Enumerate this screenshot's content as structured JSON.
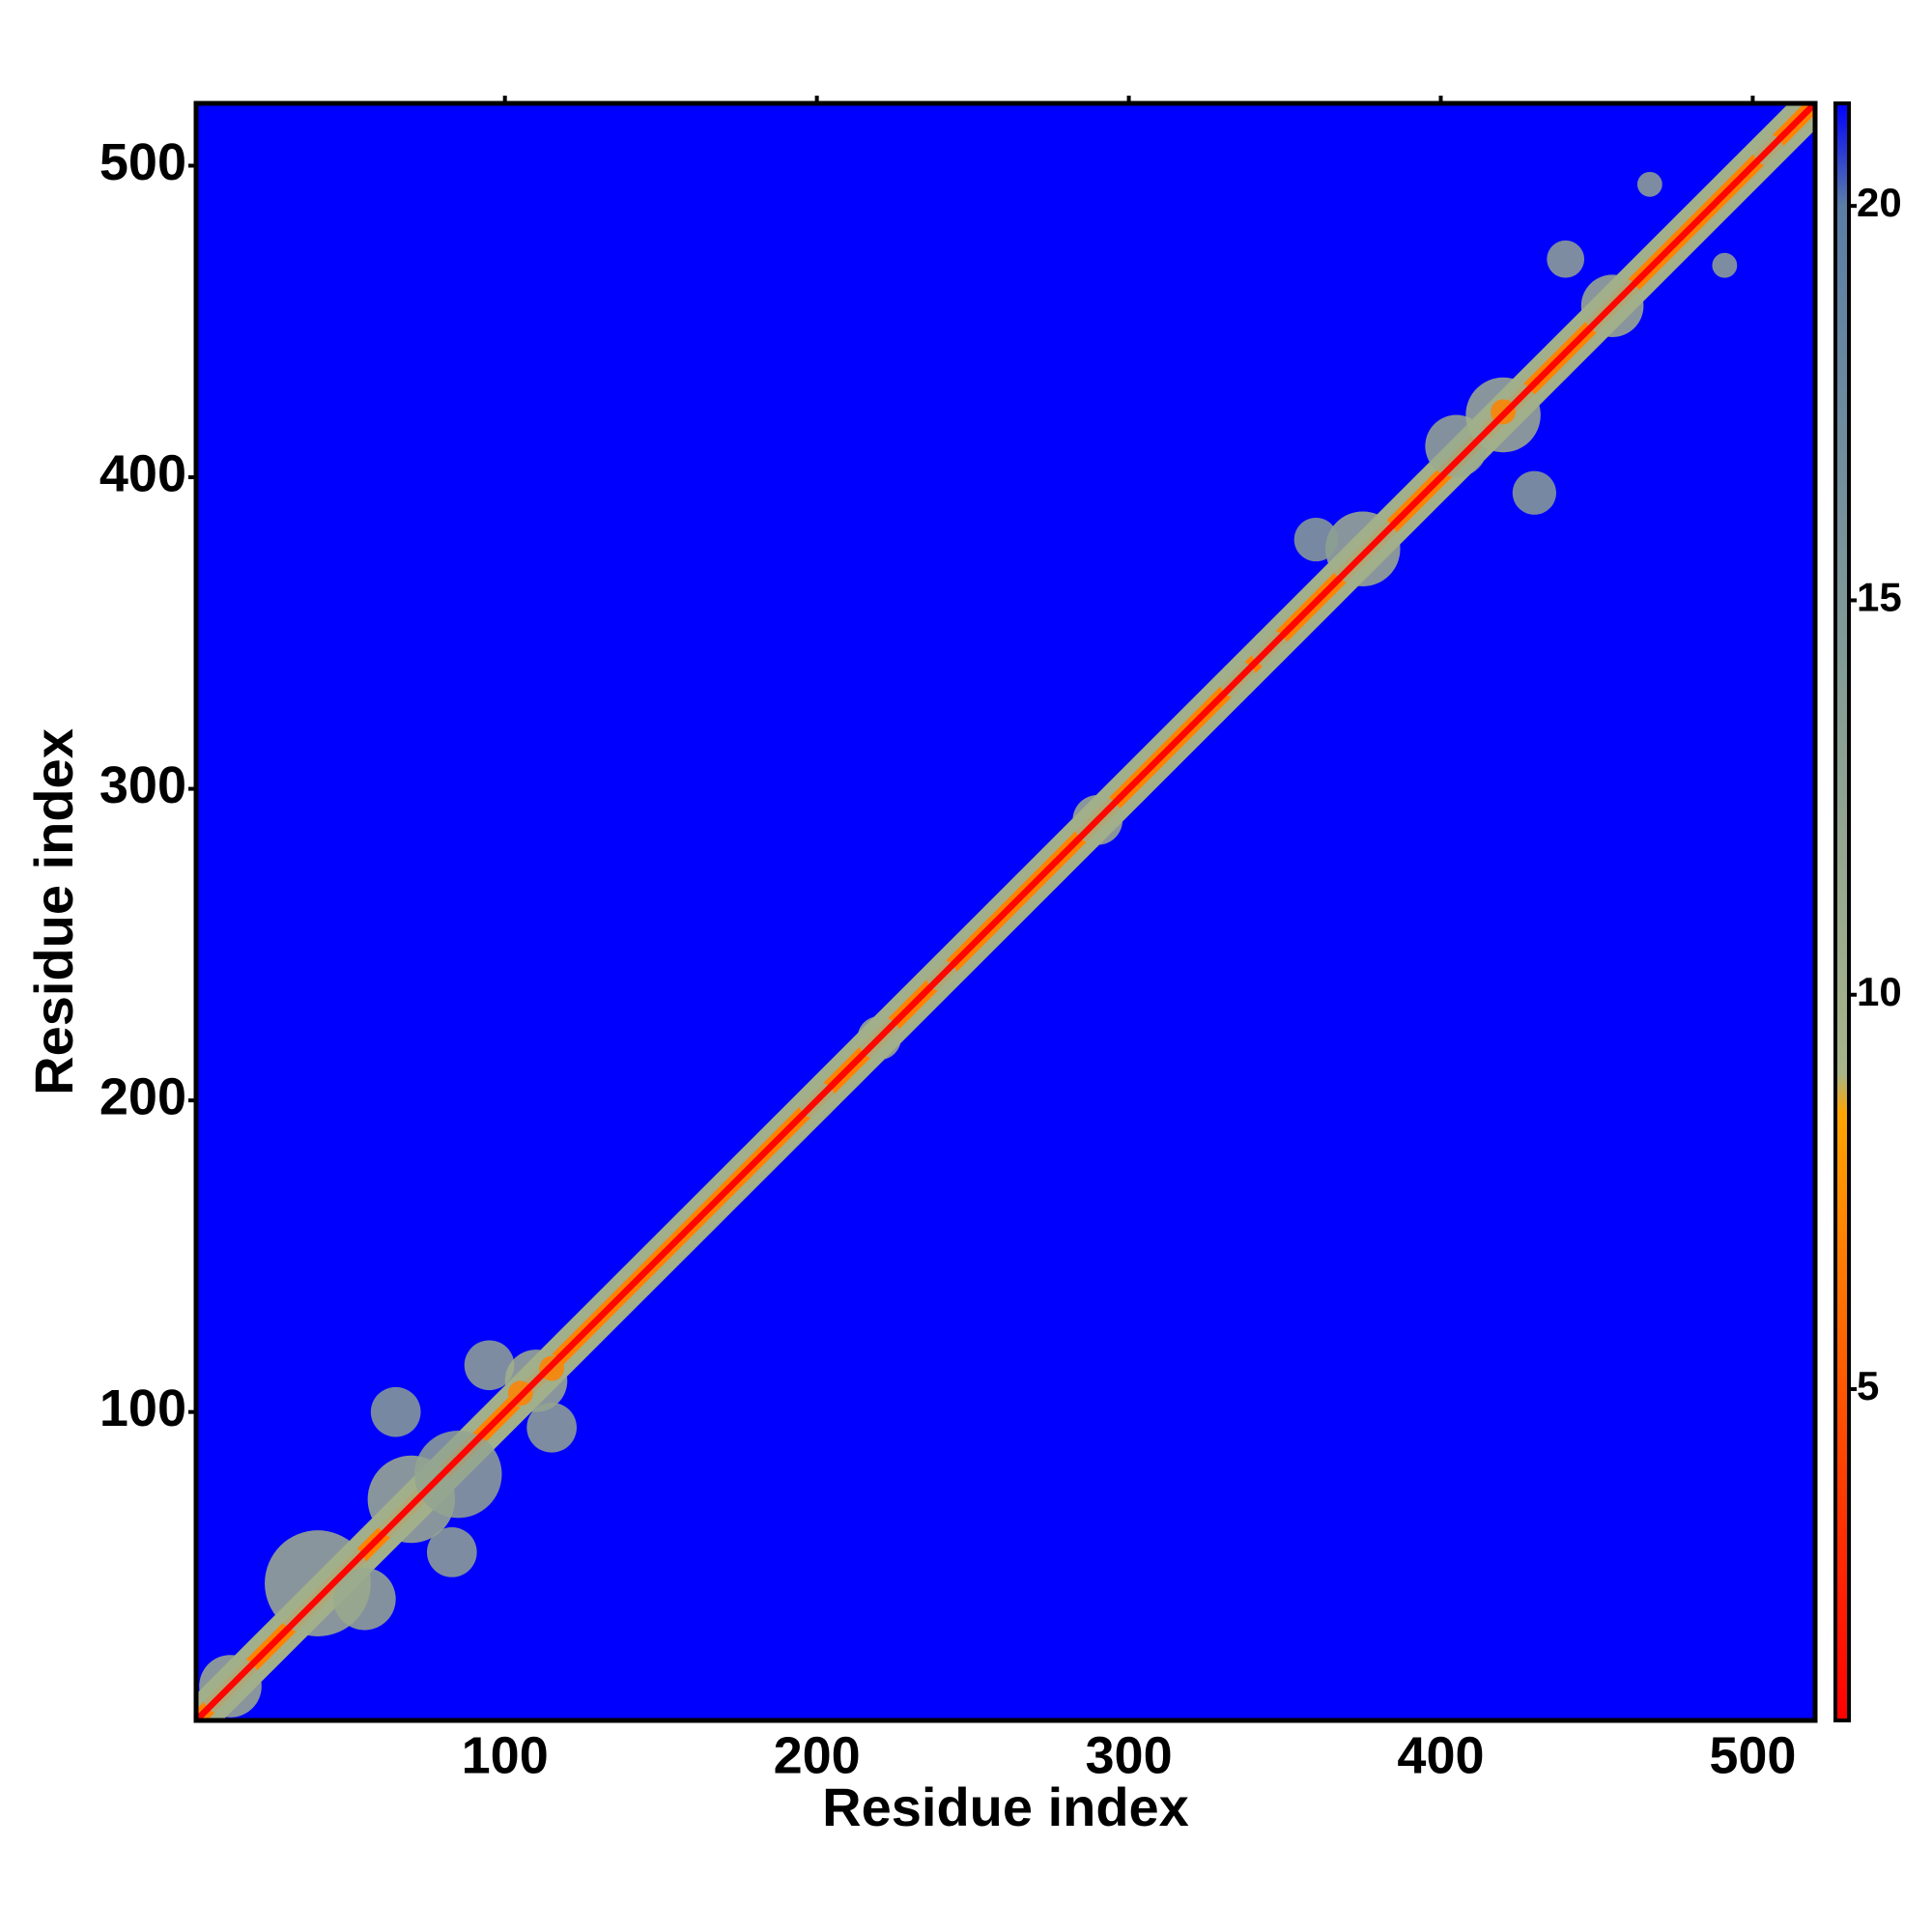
{
  "chart_data": {
    "type": "heatmap",
    "xlabel": "Residue index",
    "ylabel": "Residue index",
    "xlim": [
      1,
      520
    ],
    "ylim": [
      1,
      520
    ],
    "xticks": [
      100,
      200,
      300,
      400,
      500
    ],
    "yticks": [
      100,
      200,
      300,
      400,
      500
    ],
    "background": 21.3,
    "colorscale": [
      {
        "value": 0.8,
        "color": "#ff0000"
      },
      {
        "value": 4,
        "color": "#ff4000"
      },
      {
        "value": 8.5,
        "color": "#ffa500"
      },
      {
        "value": 9,
        "color": "#a8b488"
      },
      {
        "value": 20,
        "color": "#5a7ea6"
      },
      {
        "value": 21.3,
        "color": "#0000ff"
      }
    ],
    "clim": [
      0.8,
      21.3
    ],
    "cticks": [
      5,
      10,
      15,
      20
    ],
    "bands": [
      {
        "value": 10,
        "width": 12
      },
      {
        "value": 7,
        "width": 5
      },
      {
        "value": 1,
        "width": 2
      }
    ],
    "regions": [
      {
        "x": 12,
        "y": 12,
        "r": 10,
        "value": 10
      },
      {
        "x": 40,
        "y": 45,
        "r": 17,
        "value": 10
      },
      {
        "x": 55,
        "y": 40,
        "r": 10,
        "value": 11
      },
      {
        "x": 70,
        "y": 72,
        "r": 14,
        "value": 10
      },
      {
        "x": 85,
        "y": 80,
        "r": 14,
        "value": 12
      },
      {
        "x": 83,
        "y": 55,
        "r": 8,
        "value": 12
      },
      {
        "x": 65,
        "y": 100,
        "r": 8,
        "value": 13
      },
      {
        "x": 95,
        "y": 115,
        "r": 8,
        "value": 12
      },
      {
        "x": 110,
        "y": 110,
        "r": 10,
        "value": 10
      },
      {
        "x": 115,
        "y": 95,
        "r": 8,
        "value": 12
      },
      {
        "x": 105,
        "y": 106,
        "r": 4,
        "value": 7
      },
      {
        "x": 115,
        "y": 114,
        "r": 4,
        "value": 7
      },
      {
        "x": 200,
        "y": 200,
        "r": 6,
        "value": 10
      },
      {
        "x": 220,
        "y": 220,
        "r": 7,
        "value": 10
      },
      {
        "x": 240,
        "y": 240,
        "r": 5,
        "value": 10
      },
      {
        "x": 290,
        "y": 290,
        "r": 8,
        "value": 10
      },
      {
        "x": 335,
        "y": 335,
        "r": 6,
        "value": 10
      },
      {
        "x": 345,
        "y": 345,
        "r": 6,
        "value": 10
      },
      {
        "x": 375,
        "y": 377,
        "r": 12,
        "value": 10
      },
      {
        "x": 360,
        "y": 380,
        "r": 7,
        "value": 13
      },
      {
        "x": 405,
        "y": 410,
        "r": 10,
        "value": 11
      },
      {
        "x": 420,
        "y": 420,
        "r": 12,
        "value": 10
      },
      {
        "x": 420,
        "y": 421,
        "r": 4,
        "value": 7
      },
      {
        "x": 430,
        "y": 395,
        "r": 7,
        "value": 13
      },
      {
        "x": 455,
        "y": 455,
        "r": 10,
        "value": 10
      },
      {
        "x": 440,
        "y": 470,
        "r": 6,
        "value": 12
      },
      {
        "x": 467,
        "y": 494,
        "r": 4,
        "value": 12
      },
      {
        "x": 491,
        "y": 468,
        "r": 4,
        "value": 12
      },
      {
        "x": 505,
        "y": 505,
        "r": 5,
        "value": 10
      }
    ]
  }
}
